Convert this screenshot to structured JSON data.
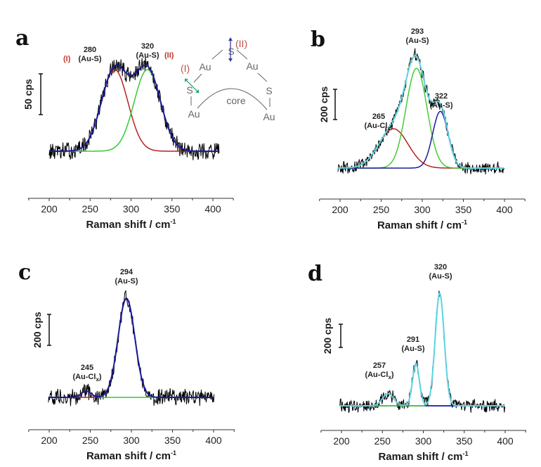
{
  "chart_data": [
    {
      "panel": "a",
      "type": "line",
      "title": "",
      "xlabel": "Raman shift / cm-1",
      "xlabel_main": "Raman shift / cm",
      "xlabel_sup": "-1",
      "ylabel": "",
      "xlim": [
        175,
        425
      ],
      "xticks": [
        200,
        250,
        300,
        350,
        400
      ],
      "scale_bar": {
        "label": "50 cps",
        "value": 50
      },
      "x_range_data": [
        200,
        408
      ],
      "noise_cps": 9,
      "grid": false,
      "series": [
        {
          "name": "spectrum",
          "color": "#000000",
          "kind": "raw"
        },
        {
          "name": "peak (I) 280",
          "color": "#b22222",
          "kind": "gauss",
          "center": 280,
          "amplitude": 100,
          "fwhm": 38
        },
        {
          "name": "peak (II) 320",
          "color": "#33cc33",
          "kind": "gauss",
          "center": 320,
          "amplitude": 100,
          "fwhm": 38
        },
        {
          "name": "cumulative fit",
          "color": "#1a1a9e",
          "kind": "sum"
        }
      ],
      "annotations": [
        {
          "x": 280,
          "value": "280",
          "assignment": "(Au-S)",
          "tag": "(I)",
          "tag_side": "left"
        },
        {
          "x": 320,
          "value": "320",
          "assignment": "(Au-S)",
          "tag": "(II)",
          "tag_side": "right"
        }
      ],
      "inset_scheme": {
        "labels": {
          "s": "S",
          "au": "Au",
          "core": "core",
          "mode_i": "(I)",
          "mode_ii": "(II)"
        },
        "colors": {
          "mode_i_arrow": "#2eaa6e",
          "mode_ii_arrow": "#3b3b9e",
          "tag": "#c0504d"
        }
      }
    },
    {
      "panel": "b",
      "type": "line",
      "xlabel": "Raman shift / cm-1",
      "xlabel_main": "Raman shift / cm",
      "xlabel_sup": "-1",
      "xlim": [
        175,
        425
      ],
      "xticks": [
        200,
        250,
        300,
        350,
        400
      ],
      "scale_bar": {
        "label": "200 cps",
        "value": 200
      },
      "x_range_data": [
        197,
        400
      ],
      "noise_cps": 35,
      "grid": false,
      "series": [
        {
          "name": "spectrum",
          "color": "#000000",
          "kind": "raw"
        },
        {
          "name": "peak 265 Au-Clx",
          "color": "#b22222",
          "kind": "gauss",
          "center": 265,
          "amplitude": 260,
          "fwhm": 42
        },
        {
          "name": "peak 293 Au-S",
          "color": "#44cc33",
          "kind": "gauss",
          "center": 293,
          "amplitude": 660,
          "fwhm": 30
        },
        {
          "name": "peak 322 Au-S",
          "color": "#1a1a9e",
          "kind": "gauss",
          "center": 322,
          "amplitude": 375,
          "fwhm": 22
        },
        {
          "name": "cumulative fit",
          "color": "#5fd3e0",
          "kind": "sum"
        }
      ],
      "annotations": [
        {
          "x": 293,
          "value": "293",
          "assignment": "(Au-S)"
        },
        {
          "x": 322,
          "value": "322",
          "assignment": "(Au-S)"
        },
        {
          "x": 265,
          "value": "265",
          "assignment": "(Au-Cl",
          "sub": "x",
          "close": ")"
        }
      ]
    },
    {
      "panel": "c",
      "type": "line",
      "xlabel": "Raman shift / cm-1",
      "xlabel_main": "Raman shift / cm",
      "xlabel_sup": "-1",
      "xlim": [
        175,
        425
      ],
      "xticks": [
        200,
        250,
        300,
        350,
        400
      ],
      "scale_bar": {
        "label": "200 cps",
        "value": 200
      },
      "x_range_data": [
        199,
        401
      ],
      "noise_cps": 45,
      "grid": false,
      "series": [
        {
          "name": "spectrum",
          "color": "#000000",
          "kind": "raw"
        },
        {
          "name": "peak 245 Au-Clx",
          "color": "#33cc33",
          "kind": "gauss",
          "center": 245,
          "amplitude": 40,
          "fwhm": 14
        },
        {
          "name": "peak 294 Au-S",
          "color": "#b22222",
          "kind": "gauss",
          "center": 294,
          "amplitude": 640,
          "fwhm": 24
        },
        {
          "name": "cumulative fit",
          "color": "#1a1a9e",
          "kind": "sum"
        }
      ],
      "annotations": [
        {
          "x": 294,
          "value": "294",
          "assignment": "(Au-S)"
        },
        {
          "x": 245,
          "value": "245",
          "assignment": "(Au-Cl",
          "sub": "x",
          "close": ")"
        }
      ]
    },
    {
      "panel": "d",
      "type": "line",
      "xlabel": "Raman shift / cm-1",
      "xlabel_main": "Raman shift / cm",
      "xlabel_sup": "-1",
      "xlim": [
        175,
        425
      ],
      "xticks": [
        200,
        250,
        300,
        350,
        400
      ],
      "scale_bar": {
        "label": "200 cps",
        "value": 200
      },
      "x_range_data": [
        198,
        400
      ],
      "noise_cps": 45,
      "grid": false,
      "series": [
        {
          "name": "spectrum",
          "color": "#000000",
          "kind": "raw"
        },
        {
          "name": "peak 257 Au-Clx",
          "color": "#1a1a9e",
          "kind": "gauss",
          "center": 257,
          "amplitude": 105,
          "fwhm": 16
        },
        {
          "name": "peak 291 Au-S",
          "color": "#1a1a9e",
          "kind": "gauss",
          "center": 291,
          "amplitude": 360,
          "fwhm": 10
        },
        {
          "name": "peak 320 Au-S",
          "color": "#44cc33",
          "kind": "gauss",
          "center": 320,
          "amplitude": 970,
          "fwhm": 13
        },
        {
          "name": "cumulative fit",
          "color": "#5fd3e0",
          "kind": "sum"
        }
      ],
      "annotations": [
        {
          "x": 320,
          "value": "320",
          "assignment": "(Au-S)"
        },
        {
          "x": 291,
          "value": "291",
          "assignment": "(Au-S)"
        },
        {
          "x": 257,
          "value": "257",
          "assignment": "(Au-Cl",
          "sub": "x",
          "close": ")"
        }
      ]
    }
  ],
  "panel_letters": [
    "a",
    "b",
    "c",
    "d"
  ]
}
